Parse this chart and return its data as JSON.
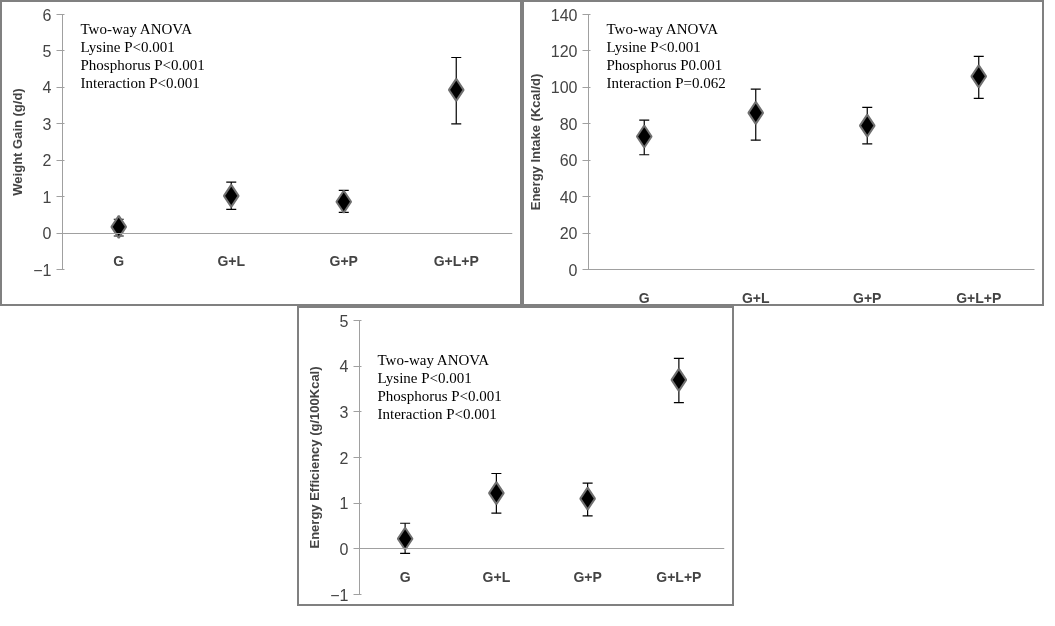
{
  "chart_data": [
    {
      "type": "scatter",
      "ylabel": "Weight Gain (g/d)",
      "categories": [
        "G",
        "G+L",
        "G+P",
        "G+L+P"
      ],
      "marker": "diamond",
      "grid": false,
      "ylim": [
        -1,
        6
      ],
      "yticks": [
        -1,
        0,
        1,
        2,
        3,
        4,
        5,
        6
      ],
      "series": [
        {
          "color": "#000000",
          "values": [
            0.17,
            1.02,
            0.86,
            3.93
          ],
          "errors": [
            [
              -0.08,
              0.38
            ],
            [
              0.65,
              1.4
            ],
            [
              0.57,
              1.17
            ],
            [
              3.0,
              4.82
            ]
          ]
        }
      ],
      "annotations": [
        "Two-way  ANOVA",
        "Lysine P<0.001",
        "Phosphorus P<0.001",
        "Interaction P<0.001"
      ]
    },
    {
      "type": "scatter",
      "ylabel": "Energy Intake (Kcal/d)",
      "categories": [
        "G",
        "G+L",
        "G+P",
        "G+L+P"
      ],
      "marker": "diamond",
      "grid": false,
      "ylim": [
        0,
        140
      ],
      "yticks": [
        0,
        20,
        40,
        60,
        80,
        100,
        120,
        140
      ],
      "series": [
        {
          "color": "#000000",
          "values": [
            73,
            86,
            79,
            106
          ],
          "errors": [
            [
              63,
              82
            ],
            [
              71,
              99
            ],
            [
              69,
              89
            ],
            [
              94,
              117
            ]
          ]
        }
      ],
      "annotations": [
        "Two-way  ANOVA",
        "Lysine P<0.001",
        "Phosphorus P0.001",
        "Interaction P=0.062"
      ]
    },
    {
      "type": "scatter",
      "ylabel": "Energy Efficiency (g/100Kcal)",
      "categories": [
        "G",
        "G+L",
        "G+P",
        "G+L+P"
      ],
      "marker": "diamond",
      "grid": false,
      "ylim": [
        -1,
        5
      ],
      "yticks": [
        -1,
        0,
        1,
        2,
        3,
        4,
        5
      ],
      "series": [
        {
          "color": "#000000",
          "values": [
            0.22,
            1.22,
            1.1,
            3.7
          ],
          "errors": [
            [
              -0.1,
              0.56
            ],
            [
              0.78,
              1.65
            ],
            [
              0.72,
              1.44
            ],
            [
              3.2,
              4.17
            ]
          ]
        }
      ],
      "annotations": [
        "Two-way  ANOVA",
        "Lysine P<0.001",
        "Phosphorus P<0.001",
        "Interaction P<0.001"
      ]
    }
  ]
}
